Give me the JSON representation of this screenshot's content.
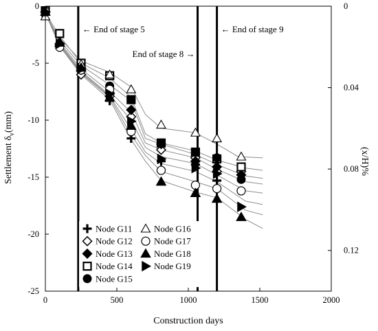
{
  "chart_data": {
    "type": "scatter",
    "title": "",
    "xlabel": "Construction days",
    "ylabel_main": "Settlement δ",
    "ylabel_sub": "v",
    "ylabel_unit": "(mm)",
    "y2label": "(x/H)%",
    "xlim": [
      0,
      2000
    ],
    "ylim": [
      -25,
      0
    ],
    "y2lim": [
      0,
      0.14
    ],
    "x_ticks": [
      0,
      500,
      1000,
      1500,
      2000
    ],
    "x_tick_labels": [
      "0",
      "500",
      "1000",
      "1500",
      "2000"
    ],
    "y_ticks": [
      0,
      -5,
      -10,
      -15,
      -20,
      -25
    ],
    "y_tick_labels": [
      "0",
      "-5",
      "-10",
      "-15",
      "-20",
      "-25"
    ],
    "y2_ticks": [
      0,
      0.04,
      0.08,
      0.12
    ],
    "y2_tick_labels": [
      "0",
      "0.04",
      "0.08",
      "0.12"
    ],
    "grid": false,
    "legend_position": "bottom-left",
    "stage_lines": [
      {
        "x": 230,
        "label": "← End of stage 5"
      },
      {
        "x": 1065,
        "label": "End of stage 8 →"
      },
      {
        "x": 1200,
        "label": "← End of stage 9"
      }
    ],
    "series": [
      {
        "name": "Node G11",
        "marker": "plus",
        "x": [
          0,
          100,
          250,
          450,
          600,
          810,
          1050,
          1200,
          1370
        ],
        "y": [
          -0.5,
          -3.3,
          -5.5,
          -8.3,
          -11.6,
          -13.6,
          -13.9,
          -15.3,
          -16.2
        ]
      },
      {
        "name": "Node G12",
        "marker": "diamond_open",
        "x": [
          0,
          100,
          250,
          450,
          600,
          810,
          1050,
          1200,
          1370
        ],
        "y": [
          -0.5,
          -3.5,
          -6.0,
          -7.9,
          -9.7,
          -12.6,
          -13.3,
          -14.5,
          -14.5
        ]
      },
      {
        "name": "Node G13",
        "marker": "diamond_filled",
        "x": [
          0,
          100,
          250,
          450,
          600,
          810,
          1050,
          1200,
          1370
        ],
        "y": [
          -0.5,
          -3.3,
          -5.6,
          -7.6,
          -9.1,
          -12.1,
          -13.6,
          -14.1,
          -14.8
        ]
      },
      {
        "name": "Node G14",
        "marker": "square_open",
        "x": [
          0,
          100,
          250,
          450,
          600,
          810,
          1050,
          1200,
          1370
        ],
        "y": [
          -0.4,
          -2.4,
          -5.0,
          -6.1,
          -8.2,
          -12.0,
          -12.8,
          -13.4,
          -14.1
        ]
      },
      {
        "name": "Node G15",
        "marker": "circle_filled",
        "x": [
          0,
          100,
          250,
          450,
          600,
          810,
          1050,
          1200,
          1370
        ],
        "y": [
          -0.5,
          -3.4,
          -5.3,
          -7.0,
          -8.2,
          -12.0,
          -12.8,
          -13.3,
          -15.2
        ]
      },
      {
        "name": "Node G16",
        "marker": "triangle_open",
        "x": [
          0,
          100,
          250,
          450,
          600,
          810,
          1050,
          1200,
          1370
        ],
        "y": [
          -0.9,
          -3.1,
          -5.1,
          -6.0,
          -7.3,
          -10.4,
          -11.1,
          -11.6,
          -13.2
        ]
      },
      {
        "name": "Node G17",
        "marker": "circle_open",
        "x": [
          0,
          100,
          250,
          450,
          600,
          810,
          1050,
          1200,
          1370
        ],
        "y": [
          -0.5,
          -3.6,
          -5.6,
          -7.3,
          -11.0,
          -14.4,
          -15.7,
          -16.0,
          -16.2
        ]
      },
      {
        "name": "Node G18",
        "marker": "triangle_filled",
        "x": [
          0,
          100,
          250,
          450,
          600,
          810,
          1050,
          1200,
          1370
        ],
        "y": [
          -0.5,
          -3.2,
          -5.4,
          -8.0,
          -10.5,
          -15.4,
          -16.4,
          -16.9,
          -18.5
        ]
      },
      {
        "name": "Node G19",
        "marker": "triangle_right_filled",
        "x": [
          0,
          100,
          250,
          450,
          600,
          810,
          1050,
          1200,
          1370
        ],
        "y": [
          -0.5,
          -3.3,
          -5.5,
          -7.7,
          -10.1,
          -13.4,
          -14.2,
          -14.7,
          -17.6
        ]
      }
    ],
    "trend_lines": [
      [
        [
          0,
          -0.8
        ],
        [
          100,
          -2.8
        ],
        [
          250,
          -4.8
        ],
        [
          450,
          -5.8
        ],
        [
          600,
          -7.1
        ],
        [
          700,
          -9.5
        ],
        [
          810,
          -10.7
        ],
        [
          1050,
          -11.1
        ],
        [
          1200,
          -12.1
        ],
        [
          1350,
          -13.2
        ],
        [
          1520,
          -13.3
        ]
      ],
      [
        [
          0,
          -0.6
        ],
        [
          100,
          -2.6
        ],
        [
          250,
          -5.0
        ],
        [
          450,
          -6.3
        ],
        [
          600,
          -8.0
        ],
        [
          700,
          -11.2
        ],
        [
          810,
          -12.0
        ],
        [
          1050,
          -12.7
        ],
        [
          1200,
          -13.5
        ],
        [
          1400,
          -14.2
        ],
        [
          1520,
          -14.4
        ]
      ],
      [
        [
          0,
          -0.6
        ],
        [
          100,
          -3.0
        ],
        [
          250,
          -5.2
        ],
        [
          450,
          -6.9
        ],
        [
          600,
          -8.3
        ],
        [
          700,
          -11.6
        ],
        [
          810,
          -12.1
        ],
        [
          1050,
          -13.0
        ],
        [
          1200,
          -13.9
        ],
        [
          1400,
          -14.9
        ],
        [
          1520,
          -15.1
        ]
      ],
      [
        [
          0,
          -0.6
        ],
        [
          100,
          -3.2
        ],
        [
          250,
          -5.5
        ],
        [
          450,
          -7.5
        ],
        [
          600,
          -9.3
        ],
        [
          700,
          -12.0
        ],
        [
          810,
          -12.6
        ],
        [
          1050,
          -13.3
        ],
        [
          1200,
          -14.3
        ],
        [
          1400,
          -15.4
        ],
        [
          1520,
          -15.6
        ]
      ],
      [
        [
          0,
          -0.6
        ],
        [
          100,
          -3.3
        ],
        [
          250,
          -5.7
        ],
        [
          450,
          -7.8
        ],
        [
          600,
          -10.0
        ],
        [
          700,
          -12.4
        ],
        [
          810,
          -13.2
        ],
        [
          1050,
          -13.8
        ],
        [
          1200,
          -14.8
        ],
        [
          1400,
          -16.2
        ],
        [
          1520,
          -16.4
        ]
      ],
      [
        [
          0,
          -0.6
        ],
        [
          100,
          -3.3
        ],
        [
          250,
          -5.8
        ],
        [
          450,
          -7.9
        ],
        [
          600,
          -10.8
        ],
        [
          700,
          -12.8
        ],
        [
          810,
          -13.8
        ],
        [
          1050,
          -14.5
        ],
        [
          1200,
          -15.4
        ],
        [
          1400,
          -17.1
        ],
        [
          1520,
          -17.4
        ]
      ],
      [
        [
          0,
          -0.6
        ],
        [
          100,
          -3.4
        ],
        [
          250,
          -5.9
        ],
        [
          450,
          -8.0
        ],
        [
          600,
          -11.3
        ],
        [
          700,
          -13.1
        ],
        [
          810,
          -14.5
        ],
        [
          1050,
          -15.4
        ],
        [
          1200,
          -16.0
        ],
        [
          1400,
          -17.9
        ],
        [
          1520,
          -18.3
        ]
      ],
      [
        [
          0,
          -0.6
        ],
        [
          100,
          -3.5
        ],
        [
          250,
          -6.0
        ],
        [
          450,
          -8.2
        ],
        [
          600,
          -11.7
        ],
        [
          700,
          -13.6
        ],
        [
          810,
          -15.3
        ],
        [
          1050,
          -16.3
        ],
        [
          1200,
          -16.8
        ],
        [
          1400,
          -18.7
        ],
        [
          1520,
          -19.5
        ]
      ]
    ]
  }
}
